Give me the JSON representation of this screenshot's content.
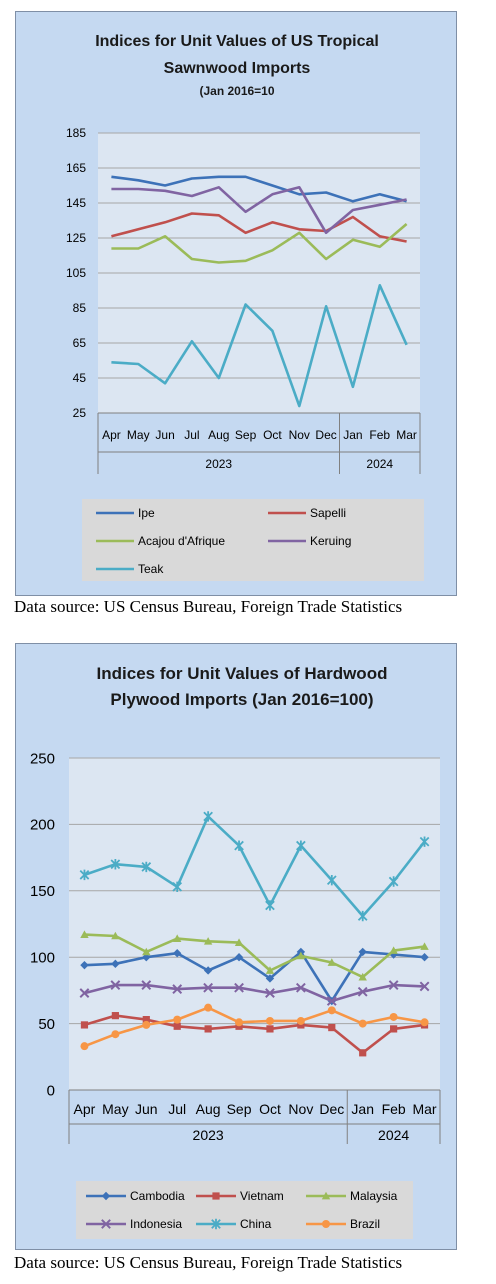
{
  "chart_data": [
    {
      "type": "line",
      "title_lines": [
        "Indices for Unit Values of US Tropical",
        "Sawnwood Imports",
        "(Jan 2016=10"
      ],
      "categories": [
        "Apr",
        "May",
        "Jun",
        "Jul",
        "Aug",
        "Sep",
        "Oct",
        "Nov",
        "Dec",
        "Jan",
        "Feb",
        "Mar"
      ],
      "year_groups": [
        {
          "label": "2023",
          "count": 9
        },
        {
          "label": "2024",
          "count": 3
        }
      ],
      "ylim": [
        25,
        185
      ],
      "yticks": [
        25,
        45,
        65,
        85,
        105,
        125,
        145,
        165,
        185
      ],
      "grid": true,
      "legend_position": "bottom",
      "series": [
        {
          "name": "Ipe",
          "color": "#3d72b8",
          "marker": "none",
          "values": [
            160,
            158,
            155,
            159,
            160,
            160,
            155,
            150,
            151,
            146,
            150,
            146
          ]
        },
        {
          "name": "Sapelli",
          "color": "#c0504d",
          "marker": "none",
          "values": [
            126,
            130,
            134,
            139,
            138,
            128,
            134,
            130,
            129,
            137,
            126,
            123
          ]
        },
        {
          "name": "Acajou d'Afrique",
          "color": "#9bbb59",
          "marker": "none",
          "values": [
            119,
            119,
            126,
            113,
            111,
            112,
            118,
            128,
            113,
            124,
            120,
            133
          ]
        },
        {
          "name": "Keruing",
          "color": "#8064a2",
          "marker": "none",
          "values": [
            153,
            153,
            152,
            149,
            154,
            140,
            150,
            154,
            128,
            141,
            144,
            147
          ]
        },
        {
          "name": "Teak",
          "color": "#4bacc6",
          "marker": "none",
          "values": [
            54,
            53,
            42,
            66,
            45,
            87,
            72,
            29,
            86,
            40,
            98,
            64
          ]
        }
      ]
    },
    {
      "type": "line",
      "title_lines": [
        "Indices for Unit Values of Hardwood",
        "Plywood Imports (Jan 2016=100)"
      ],
      "categories": [
        "Apr",
        "May",
        "Jun",
        "Jul",
        "Aug",
        "Sep",
        "Oct",
        "Nov",
        "Dec",
        "Jan",
        "Feb",
        "Mar"
      ],
      "year_groups": [
        {
          "label": "2023",
          "count": 9
        },
        {
          "label": "2024",
          "count": 3
        }
      ],
      "ylim": [
        0,
        250
      ],
      "yticks": [
        0,
        50,
        100,
        150,
        200,
        250
      ],
      "grid": true,
      "legend_position": "bottom",
      "series": [
        {
          "name": "Cambodia",
          "color": "#3d72b8",
          "marker": "diamond",
          "values": [
            94,
            95,
            100,
            103,
            90,
            100,
            84,
            104,
            67,
            104,
            102,
            100
          ]
        },
        {
          "name": "Vietnam",
          "color": "#c0504d",
          "marker": "square",
          "values": [
            49,
            56,
            53,
            48,
            46,
            48,
            46,
            49,
            47,
            28,
            46,
            49
          ]
        },
        {
          "name": "Malaysia",
          "color": "#9bbb59",
          "marker": "triangle",
          "values": [
            117,
            116,
            104,
            114,
            112,
            111,
            90,
            101,
            96,
            85,
            105,
            108
          ]
        },
        {
          "name": "Indonesia",
          "color": "#8064a2",
          "marker": "x",
          "values": [
            73,
            79,
            79,
            76,
            77,
            77,
            73,
            77,
            67,
            74,
            79,
            78
          ]
        },
        {
          "name": "China",
          "color": "#4bacc6",
          "marker": "star",
          "values": [
            162,
            170,
            168,
            153,
            206,
            184,
            139,
            184,
            158,
            131,
            157,
            187
          ]
        },
        {
          "name": "Brazil",
          "color": "#f79646",
          "marker": "circle",
          "values": [
            33,
            42,
            49,
            53,
            62,
            51,
            52,
            52,
            60,
            50,
            55,
            51
          ]
        }
      ]
    }
  ],
  "source_text": [
    "Data source: US Census Bureau, Foreign Trade Statistics",
    "Data source: US Census Bureau, Foreign Trade Statistics"
  ]
}
